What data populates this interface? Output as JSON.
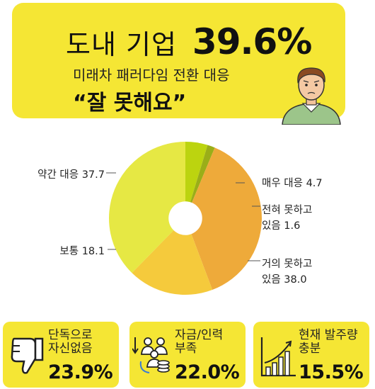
{
  "banner": {
    "headline_label": "도내 기업",
    "headline_value": "39.6%",
    "subtitle": "미래차 패러다임 전환 대응",
    "quote": "“잘 못해요”"
  },
  "chart_data": {
    "type": "pie",
    "title": "",
    "start_angle_deg": 0,
    "direction": "clockwise",
    "inner_radius_ratio": 0.22,
    "categories": [
      "매우 대응",
      "전혀 못하고 있음",
      "거의 못하고 있음",
      "보통",
      "약간 대응"
    ],
    "labels": [
      [
        "매우 대응 4.7"
      ],
      [
        "전혀 못하고",
        "있음 1.6"
      ],
      [
        "거의 못하고",
        "있음 38.0"
      ],
      [
        "보통 18.1"
      ],
      [
        "약간 대응 37.7"
      ]
    ],
    "values": [
      4.7,
      1.6,
      38.0,
      18.1,
      37.7
    ],
    "colors": [
      "#bcd40f",
      "#9aae18",
      "#eeaa3a",
      "#f5ca3c",
      "#e6e844"
    ]
  },
  "cards": [
    {
      "label": "단독으로\n자신없음",
      "value": "23.9%",
      "icon": "thumbs-down-icon"
    },
    {
      "label": "자금/인력\n부족",
      "value": "22.0%",
      "icon": "money-people-icon"
    },
    {
      "label": "현재 발주량\n충분",
      "value": "15.5%",
      "icon": "growth-chart-icon"
    }
  ]
}
